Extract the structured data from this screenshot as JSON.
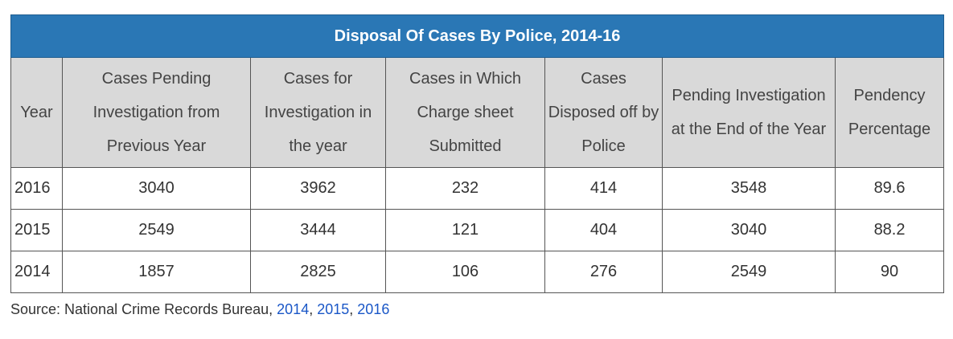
{
  "table": {
    "title": "Disposal Of Cases By Police, 2014-16",
    "headers": [
      "Year",
      "Cases Pending Investigation from Previous Year",
      "Cases for Investigation in the year",
      "Cases in Which Charge sheet Submitted",
      "Cases Disposed off by Police",
      "Pending Investigation at the End of the Year",
      "Pendency Percentage"
    ],
    "rows": [
      [
        "2016",
        "3040",
        "3962",
        "232",
        "414",
        "3548",
        "89.6"
      ],
      [
        "2015",
        "2549",
        "3444",
        "121",
        "404",
        "3040",
        "88.2"
      ],
      [
        "2014",
        "1857",
        "2825",
        "106",
        "276",
        "2549",
        "90"
      ]
    ]
  },
  "source": {
    "prefix": "Source: National Crime Records Bureau, ",
    "links": [
      "2014",
      "2015",
      "2016"
    ],
    "separator": ", "
  },
  "colors": {
    "title_bg": "#2a77b5",
    "header_bg": "#d9d9d9",
    "link": "#1a57c7"
  }
}
